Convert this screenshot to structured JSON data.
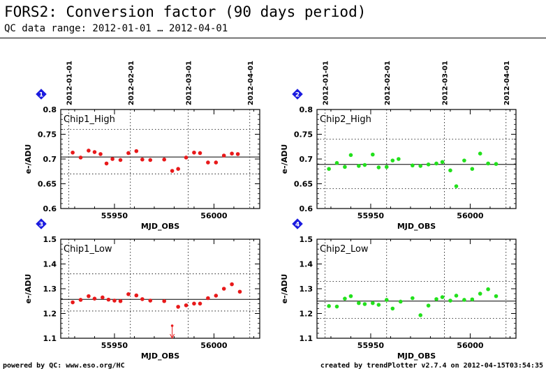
{
  "header": {
    "title": "FORS2: Conversion factor (90 days period)",
    "subtitle": "QC data range: 2012-01-01 … 2012-04-01"
  },
  "footer": {
    "left": "powered by QC: www.eso.org/HC",
    "right": "created by trendPlotter v2.7.4 on 2012-04-15T03:54:35"
  },
  "colors": {
    "chip1": "#e8191a",
    "chip2": "#22e01c",
    "badge": "#1a1adf"
  },
  "chart_data": [
    {
      "type": "scatter",
      "panel_number": "1",
      "title": "Chip1_High",
      "xlabel": "MJD_OBS",
      "ylabel": "e-/ADU",
      "xlim": [
        55923,
        56023
      ],
      "ylim": [
        0.6,
        0.8
      ],
      "x_ticks": [
        55950,
        56000
      ],
      "y_ticks": [
        "0.6",
        "0.65",
        "0.7",
        "0.75",
        "0.8"
      ],
      "date_markers": [
        {
          "label": "2012-01-01",
          "x": 55927
        },
        {
          "label": "2012-02-01",
          "x": 55958
        },
        {
          "label": "2012-03-01",
          "x": 55987
        },
        {
          "label": "2012-04-01",
          "x": 56018
        }
      ],
      "mean_line": 0.704,
      "limit_lines": [
        0.67,
        0.76
      ],
      "point_color": "chip1",
      "series": [
        {
          "x": [
            55929,
            55933,
            55937,
            55940,
            55943,
            55946,
            55949,
            55953,
            55957,
            55961,
            55964,
            55968,
            55975,
            55979,
            55982,
            55986,
            55990,
            55993,
            55997,
            56001,
            56005,
            56009,
            56012
          ],
          "y": [
            0.713,
            0.703,
            0.717,
            0.714,
            0.71,
            0.691,
            0.7,
            0.698,
            0.712,
            0.716,
            0.699,
            0.698,
            0.699,
            0.676,
            0.68,
            0.703,
            0.713,
            0.712,
            0.693,
            0.693,
            0.707,
            0.711,
            0.71
          ]
        }
      ]
    },
    {
      "type": "scatter",
      "panel_number": "2",
      "title": "Chip2_High",
      "xlabel": "MJD_OBS",
      "ylabel": "e-/ADU",
      "xlim": [
        55923,
        56023
      ],
      "ylim": [
        0.6,
        0.8
      ],
      "x_ticks": [
        55950,
        56000
      ],
      "y_ticks": [
        "0.6",
        "0.65",
        "0.7",
        "0.75",
        "0.8"
      ],
      "date_markers": [
        {
          "label": "2012-01-01",
          "x": 55927
        },
        {
          "label": "2012-02-01",
          "x": 55958
        },
        {
          "label": "2012-03-01",
          "x": 55987
        },
        {
          "label": "2012-04-01",
          "x": 56018
        }
      ],
      "mean_line": 0.689,
      "limit_lines": [
        0.64,
        0.74
      ],
      "point_color": "chip2",
      "series": [
        {
          "x": [
            55929,
            55933,
            55937,
            55940,
            55944,
            55947,
            55951,
            55954,
            55958,
            55961,
            55964,
            55971,
            55975,
            55979,
            55983,
            55986,
            55990,
            55993,
            55997,
            56001,
            56005,
            56009,
            56013
          ],
          "y": [
            0.68,
            0.692,
            0.684,
            0.708,
            0.686,
            0.688,
            0.709,
            0.683,
            0.684,
            0.697,
            0.7,
            0.687,
            0.686,
            0.689,
            0.691,
            0.694,
            0.677,
            0.645,
            0.697,
            0.68,
            0.711,
            0.691,
            0.69
          ]
        }
      ]
    },
    {
      "type": "scatter",
      "panel_number": "3",
      "title": "Chip1_Low",
      "xlabel": "MJD_OBS",
      "ylabel": "e-/ADU",
      "xlim": [
        55923,
        56023
      ],
      "ylim": [
        1.1,
        1.5
      ],
      "x_ticks": [
        55950,
        56000
      ],
      "y_ticks": [
        "1.1",
        "1.2",
        "1.3",
        "1.4",
        "1.5"
      ],
      "date_markers": [
        {
          "x": 55927
        },
        {
          "x": 55958
        },
        {
          "x": 55987
        },
        {
          "x": 56018
        }
      ],
      "mean_line": 1.257,
      "limit_lines": [
        1.21,
        1.36
      ],
      "point_color": "chip1",
      "outlier": {
        "x": 55979,
        "y": 1.08
      },
      "series": [
        {
          "x": [
            55929,
            55933,
            55937,
            55940,
            55944,
            55947,
            55950,
            55953,
            55957,
            55961,
            55964,
            55968,
            55975,
            55982,
            55986,
            55990,
            55993,
            55997,
            56001,
            56005,
            56009,
            56013
          ],
          "y": [
            1.245,
            1.255,
            1.27,
            1.26,
            1.265,
            1.256,
            1.252,
            1.25,
            1.278,
            1.273,
            1.258,
            1.252,
            1.25,
            1.227,
            1.233,
            1.24,
            1.24,
            1.262,
            1.272,
            1.3,
            1.318,
            1.288
          ]
        }
      ]
    },
    {
      "type": "scatter",
      "panel_number": "4",
      "title": "Chip2_Low",
      "xlabel": "MJD_OBS",
      "ylabel": "e-/ADU",
      "xlim": [
        55923,
        56023
      ],
      "ylim": [
        1.1,
        1.5
      ],
      "x_ticks": [
        55950,
        56000
      ],
      "y_ticks": [
        "1.1",
        "1.2",
        "1.3",
        "1.4",
        "1.5"
      ],
      "date_markers": [
        {
          "x": 55927
        },
        {
          "x": 55958
        },
        {
          "x": 55987
        },
        {
          "x": 56018
        }
      ],
      "mean_line": 1.25,
      "limit_lines": [
        1.18,
        1.33
      ],
      "point_color": "chip2",
      "series": [
        {
          "x": [
            55929,
            55933,
            55937,
            55940,
            55944,
            55947,
            55951,
            55954,
            55958,
            55961,
            55965,
            55971,
            55975,
            55979,
            55983,
            55986,
            55990,
            55993,
            55997,
            56001,
            56005,
            56009,
            56013
          ],
          "y": [
            1.23,
            1.228,
            1.26,
            1.27,
            1.242,
            1.238,
            1.242,
            1.235,
            1.255,
            1.22,
            1.248,
            1.262,
            1.193,
            1.232,
            1.258,
            1.266,
            1.252,
            1.272,
            1.255,
            1.257,
            1.28,
            1.298,
            1.27
          ]
        }
      ]
    }
  ]
}
